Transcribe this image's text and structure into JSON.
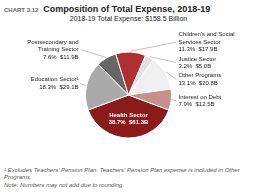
{
  "chart_data": {
    "type": "pie",
    "title": "Composition of Total Expense, 2018-19",
    "subtitle": "2018-19 Total Expense: $158.5 Billion",
    "annotations": [
      "CHART 3.12",
      "¹ Excludes Teachers' Pension Plan. Teachers' Pension Plan expense is included in Other Programs.",
      "Note: Numbers may not add due to rounding."
    ],
    "categories": [
      "Health Sector",
      "Education Sector¹",
      "Postsecondary and\nTraining Sector",
      "Children's and Social\nServices Sector",
      "Justice Sector",
      "Other Programs",
      "Interest on Debt"
    ],
    "values": [
      38.7,
      18.3,
      7.6,
      11.3,
      3.2,
      13.1,
      7.9
    ],
    "value_labels": [
      "38.7%  $61.3B",
      "18.3%  $29.1B",
      "7.6%  $11.9B",
      "11.3%  $17.9B",
      "3.2%  $5.0B",
      "13.1%  $20.8B",
      "7.9%  $12.5B"
    ],
    "colors": [
      "#8B1A1A",
      "#AAAAAA",
      "#666666",
      "#B03030",
      "#E0E0E0",
      "#F0F0F0",
      "#C8908A"
    ],
    "data_labels": true
  }
}
